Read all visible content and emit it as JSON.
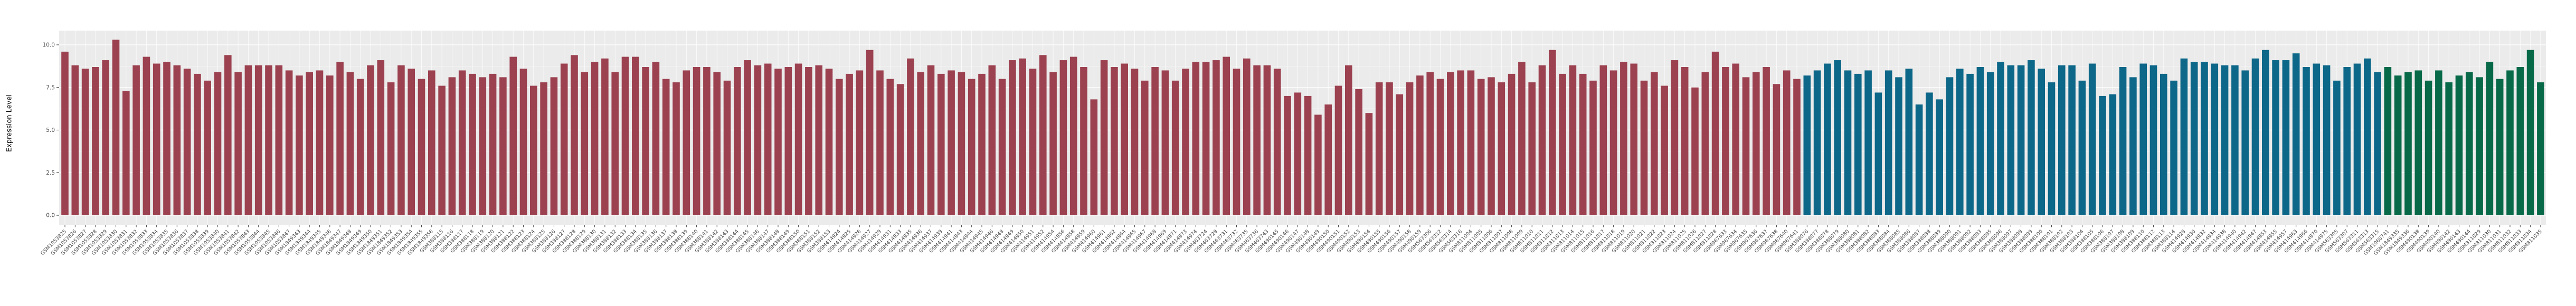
{
  "chart_data": {
    "type": "bar",
    "title": "",
    "xlabel": "",
    "ylabel": "Expression Level",
    "ylim": [
      0,
      10.8
    ],
    "yticks": [
      "0.0",
      "2.5",
      "5.0",
      "7.5",
      "10.0"
    ],
    "grid": "on",
    "legend": "none",
    "panel_background": "#EBEBEB",
    "gridline_color": "#FFFFFF",
    "tick_color": "#333333",
    "tick_label_color": "#4D4D4D",
    "groups": [
      {
        "color": "#9C4150",
        "count": 171
      },
      {
        "color": "#0D6788",
        "count": 57
      },
      {
        "color": "#076948",
        "count": 16
      }
    ],
    "categories": [
      "GSM1053825",
      "GSM1053826",
      "GSM1053827",
      "GSM1053828",
      "GSM1053829",
      "GSM1053830",
      "GSM1053831",
      "GSM1053832",
      "GSM1053833",
      "GSM1053834",
      "GSM1053835",
      "GSM1053836",
      "GSM1053837",
      "GSM1053838",
      "GSM1053839",
      "GSM1053840",
      "GSM1053841",
      "GSM1053842",
      "GSM1053843",
      "GSM1053844",
      "GSM1053845",
      "GSM1053846",
      "GSM1053847",
      "GSM1849343",
      "GSM1849344",
      "GSM1849345",
      "GSM1849346",
      "GSM1849347",
      "GSM1849348",
      "GSM1849349",
      "GSM1849350",
      "GSM1849351",
      "GSM1849352",
      "GSM1849353",
      "GSM1849354",
      "GSM1849355",
      "GSM1849356",
      "GSM388115",
      "GSM388116",
      "GSM388117",
      "GSM388118",
      "GSM388119",
      "GSM388120",
      "GSM388121",
      "GSM388122",
      "GSM388123",
      "GSM388124",
      "GSM388125",
      "GSM388126",
      "GSM388127",
      "GSM388128",
      "GSM388129",
      "GSM388130",
      "GSM388131",
      "GSM388132",
      "GSM388133",
      "GSM388134",
      "GSM388135",
      "GSM388136",
      "GSM388137",
      "GSM388138",
      "GSM388139",
      "GSM388140",
      "GSM388141",
      "GSM388142",
      "GSM388143",
      "GSM388144",
      "GSM388145",
      "GSM388146",
      "GSM388147",
      "GSM388148",
      "GSM388149",
      "GSM388150",
      "GSM388151",
      "GSM388152",
      "GSM388153",
      "GSM414924",
      "GSM414925",
      "GSM414926",
      "GSM414927",
      "GSM414929",
      "GSM414931",
      "GSM414933",
      "GSM414935",
      "GSM414936",
      "GSM414937",
      "GSM414939",
      "GSM414941",
      "GSM414943",
      "GSM414944",
      "GSM414945",
      "GSM414946",
      "GSM414948",
      "GSM414949",
      "GSM414950",
      "GSM414951",
      "GSM414952",
      "GSM414954",
      "GSM414956",
      "GSM414958",
      "GSM414959",
      "GSM414960",
      "GSM414961",
      "GSM414962",
      "GSM414964",
      "GSM414965",
      "GSM414967",
      "GSM414968",
      "GSM414969",
      "GSM414971",
      "GSM414973",
      "GSM414974",
      "GSM463724",
      "GSM463728",
      "GSM463731",
      "GSM463732",
      "GSM463735",
      "GSM463736",
      "GSM463743",
      "GSM490145",
      "GSM490146",
      "GSM490147",
      "GSM490148",
      "GSM490149",
      "GSM490150",
      "GSM490151",
      "GSM490152",
      "GSM490153",
      "GSM490154",
      "GSM490155",
      "GSM490156",
      "GSM490157",
      "GSM490158",
      "GSM490159",
      "GSM563306",
      "GSM563312",
      "GSM563314",
      "GSM563316",
      "GSM811004",
      "GSM811005",
      "GSM811006",
      "GSM811007",
      "GSM811008",
      "GSM811009",
      "GSM811010",
      "GSM811011",
      "GSM811012",
      "GSM811013",
      "GSM811014",
      "GSM811015",
      "GSM811016",
      "GSM811017",
      "GSM811018",
      "GSM811019",
      "GSM811020",
      "GSM811021",
      "GSM811022",
      "GSM811023",
      "GSM811024",
      "GSM811025",
      "GSM811026",
      "GSM811027",
      "GSM811028",
      "GSM967633",
      "GSM967634",
      "GSM967635",
      "GSM967636",
      "GSM967637",
      "GSM967638",
      "GSM967640",
      "GSM967641",
      "GSM388076",
      "GSM388077",
      "GSM388078",
      "GSM388079",
      "GSM388080",
      "GSM388081",
      "GSM388082",
      "GSM388083",
      "GSM388084",
      "GSM388085",
      "GSM388086",
      "GSM388087",
      "GSM388088",
      "GSM388089",
      "GSM388090",
      "GSM388091",
      "GSM388092",
      "GSM388093",
      "GSM388095",
      "GSM388096",
      "GSM388097",
      "GSM388098",
      "GSM388099",
      "GSM388100",
      "GSM388101",
      "GSM388102",
      "GSM388103",
      "GSM388104",
      "GSM388105",
      "GSM388106",
      "GSM388107",
      "GSM388108",
      "GSM388109",
      "GSM388110",
      "GSM388112",
      "GSM388113",
      "GSM388114",
      "GSM414928",
      "GSM414930",
      "GSM414932",
      "GSM414934",
      "GSM414938",
      "GSM414940",
      "GSM414942",
      "GSM414947",
      "GSM414953",
      "GSM414955",
      "GSM414957",
      "GSM414963",
      "GSM414966",
      "GSM414970",
      "GSM414975",
      "GSM563305",
      "GSM563307",
      "GSM563311",
      "GSM563313",
      "GSM563315",
      "GSM1060741",
      "GSM1849335",
      "GSM1849336",
      "GSM490138",
      "GSM490139",
      "GSM490140",
      "GSM490142",
      "GSM490143",
      "GSM490144",
      "GSM811029",
      "GSM811030",
      "GSM811031",
      "GSM811032",
      "GSM811033",
      "GSM811034",
      "GSM811035"
    ],
    "values": [
      9.6,
      8.8,
      8.6,
      8.7,
      9.1,
      10.3,
      7.3,
      8.8,
      9.3,
      8.9,
      9.0,
      8.8,
      8.6,
      8.3,
      7.9,
      8.4,
      9.4,
      8.4,
      8.8,
      8.8,
      8.8,
      8.8,
      8.5,
      8.2,
      8.4,
      8.5,
      8.2,
      9.0,
      8.4,
      8.0,
      8.8,
      9.1,
      7.8,
      8.8,
      8.6,
      8.0,
      8.5,
      7.6,
      8.1,
      8.5,
      8.3,
      8.1,
      8.3,
      8.1,
      9.3,
      8.6,
      7.6,
      7.8,
      8.1,
      8.9,
      9.4,
      8.4,
      9.0,
      9.2,
      8.4,
      9.3,
      9.3,
      8.7,
      9.0,
      8.0,
      7.8,
      8.5,
      8.7,
      8.7,
      8.4,
      7.9,
      8.7,
      9.1,
      8.8,
      8.9,
      8.6,
      8.7,
      8.9,
      8.7,
      8.8,
      8.6,
      8.0,
      8.3,
      8.5,
      9.7,
      8.5,
      8.0,
      7.7,
      9.2,
      8.4,
      8.8,
      8.3,
      8.5,
      8.4,
      8.0,
      8.3,
      8.8,
      8.0,
      9.1,
      9.2,
      8.6,
      9.4,
      8.4,
      9.1,
      9.3,
      8.7,
      6.8,
      9.1,
      8.7,
      8.9,
      8.6,
      7.9,
      8.7,
      8.5,
      7.9,
      8.6,
      9.0,
      9.0,
      9.1,
      9.3,
      8.6,
      9.2,
      8.8,
      8.8,
      8.6,
      7.0,
      7.2,
      7.0,
      5.9,
      6.5,
      7.6,
      8.8,
      7.4,
      6.0,
      7.8,
      7.8,
      7.1,
      7.8,
      8.2,
      8.4,
      8.0,
      8.4,
      8.5,
      8.5,
      8.0,
      8.1,
      7.8,
      8.3,
      9.0,
      7.8,
      8.8,
      9.7,
      8.3,
      8.8,
      8.3,
      7.9,
      8.8,
      8.5,
      9.0,
      8.9,
      7.9,
      8.4,
      7.6,
      9.1,
      8.7,
      7.5,
      8.4,
      9.6,
      8.7,
      8.9,
      8.1,
      8.4,
      8.7,
      7.7,
      8.5,
      8.0,
      8.2,
      8.5,
      8.9,
      9.1,
      8.5,
      8.3,
      8.5,
      7.2,
      8.5,
      8.1,
      8.6,
      6.5,
      7.2,
      6.8,
      8.1,
      8.6,
      8.3,
      8.7,
      8.4,
      9.0,
      8.8,
      8.8,
      9.1,
      8.6,
      7.8,
      8.8,
      8.8,
      7.9,
      8.9,
      7.0,
      7.1,
      8.7,
      8.1,
      8.9,
      8.8,
      8.3,
      7.9,
      9.2,
      9.0,
      9.0,
      8.9,
      8.8,
      8.8,
      8.5,
      9.2,
      9.7,
      9.1,
      9.1,
      9.5,
      8.7,
      8.9,
      8.8,
      7.9,
      8.7,
      8.9,
      9.2,
      8.4,
      8.7,
      8.2,
      8.4,
      8.5,
      7.9,
      8.5,
      7.8,
      8.2,
      8.4,
      8.1,
      9.0,
      8.0,
      8.5,
      8.7,
      9.7,
      7.8
    ]
  }
}
